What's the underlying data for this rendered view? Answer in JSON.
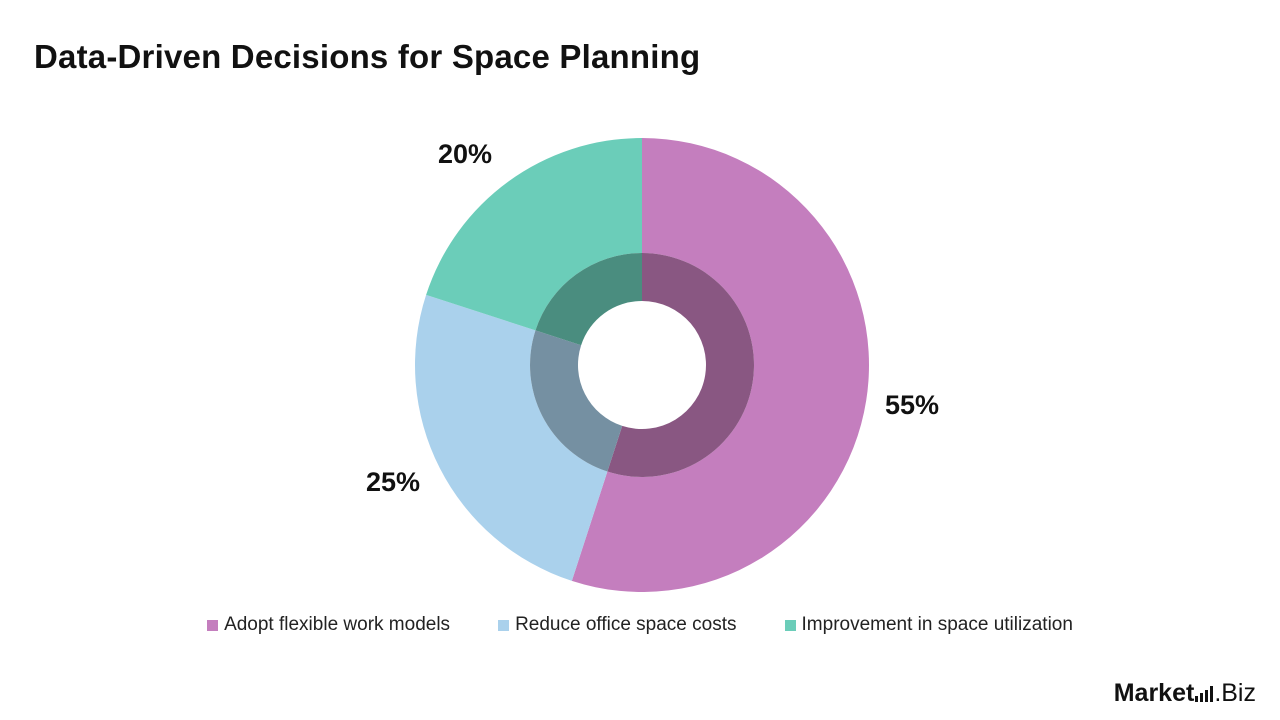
{
  "title": "Data-Driven Decisions for Space Planning",
  "chart_data": {
    "type": "pie",
    "title": "Data-Driven Decisions for Space Planning",
    "legend_position": "bottom",
    "slices": [
      {
        "name": "Adopt flexible work models",
        "value": 55,
        "label": "55%",
        "color": "#C47EBE",
        "inner_color": "#895782"
      },
      {
        "name": "Reduce office space costs",
        "value": 25,
        "label": "25%",
        "color": "#AAD1EC",
        "inner_color": "#7590A2"
      },
      {
        "name": "Improvement in space utilization",
        "value": 20,
        "label": "20%",
        "color": "#6BCDB9",
        "inner_color": "#4A8D7F"
      }
    ]
  },
  "brand": {
    "part1": "Market",
    "part2": ".Biz"
  }
}
